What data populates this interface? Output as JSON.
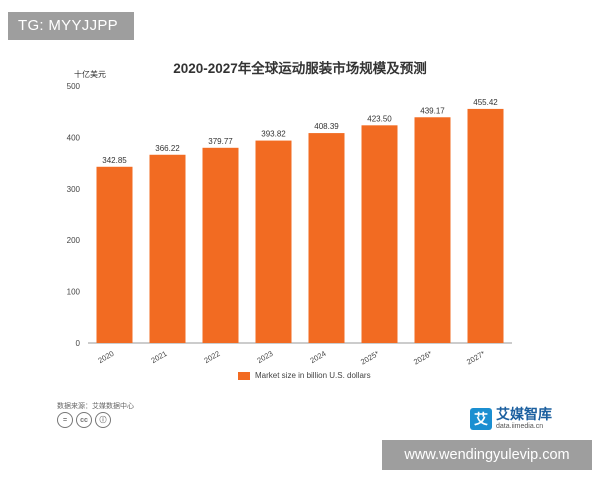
{
  "corner_tag": "TG: MYYJJPP",
  "watermark": "www.wendingyulevip.com",
  "chart_data": {
    "type": "bar",
    "title": "2020-2027年全球运动服装市场规模及预测",
    "unit_label": "十亿美元",
    "categories": [
      "2020",
      "2021",
      "2022",
      "2023",
      "2024",
      "2025*",
      "2026*",
      "2027*"
    ],
    "series": [
      {
        "name": "Market size in billion U.S. dollars",
        "values": [
          342.85,
          366.22,
          379.77,
          393.82,
          408.39,
          423.5,
          439.17,
          455.42
        ]
      }
    ],
    "data_labels": [
      "342.85",
      "366.22",
      "379.77",
      "393.82",
      "408.39",
      "423.50",
      "439.17",
      "455.42"
    ],
    "yticks": [
      "0",
      "100",
      "200",
      "300",
      "400",
      "500"
    ],
    "ylim": [
      0,
      500
    ],
    "grid": false,
    "legend_position": "bottom",
    "bar_color": "#f26b22"
  },
  "footer": {
    "source": "数据来源：艾媒数据中心",
    "license_icons": [
      "equals-icon",
      "cc-icon",
      "person-icon"
    ],
    "license_glyphs": [
      "=",
      "cc",
      "ⓘ"
    ],
    "brand_logo_char": "艾",
    "brand_name": "艾媒智库",
    "brand_url": "data.iimedia.cn"
  },
  "colors": {
    "bar": "#f26b22",
    "tag_bg": "#787878",
    "brand": "#1b8fd1"
  }
}
